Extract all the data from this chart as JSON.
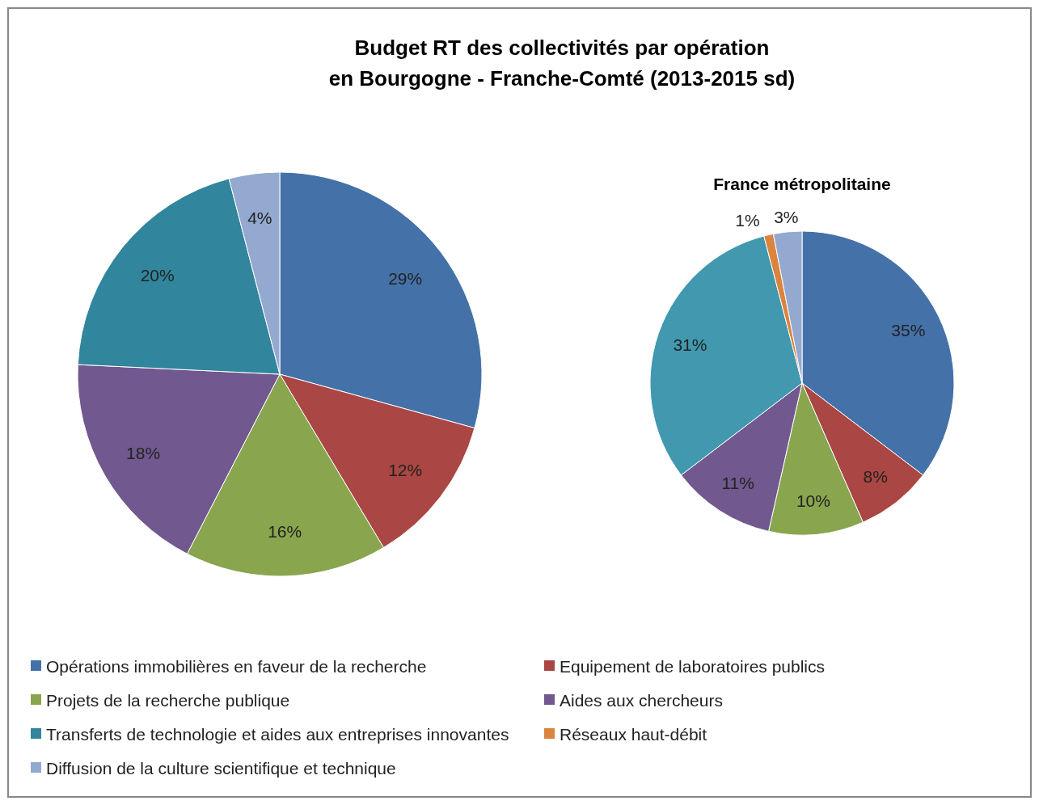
{
  "chart_data": [
    {
      "type": "pie",
      "title": "Budget RT des collectivités par opération\nen Bourgogne - Franche-Comté  (2013-2015 sd)",
      "categories": [
        "Opérations immobilières en faveur de la recherche",
        "Equipement de laboratoires publics",
        "Projets de la recherche publique",
        "Aides aux chercheurs",
        "Transferts de technologie et aides aux entreprises innovantes",
        "Réseaux haut-débit",
        "Diffusion de la culture scientifique et technique"
      ],
      "values": [
        29,
        12,
        16,
        18,
        20,
        null,
        4
      ],
      "value_labels": [
        "29%",
        "12%",
        "16%",
        "18%",
        "20%",
        null,
        "4%"
      ],
      "colors": [
        "#4472a8",
        "#aa4643",
        "#89a54e",
        "#71588f",
        "#31859c",
        "#db843d",
        "#93a9cf"
      ],
      "legend": "bottom"
    },
    {
      "type": "pie",
      "title": "France métropolitaine",
      "categories": [
        null,
        null,
        null,
        null,
        null,
        null,
        null
      ],
      "values": [
        35,
        8,
        10,
        11,
        31,
        1,
        3
      ],
      "value_labels": [
        "35%",
        "8%",
        "10%",
        "11%",
        "31%",
        "1%",
        "3%"
      ],
      "colors": [
        "#4472a8",
        "#aa4643",
        "#89a54e",
        "#71588f",
        "#4198af",
        "#db843d",
        "#93a9cf"
      ]
    }
  ]
}
